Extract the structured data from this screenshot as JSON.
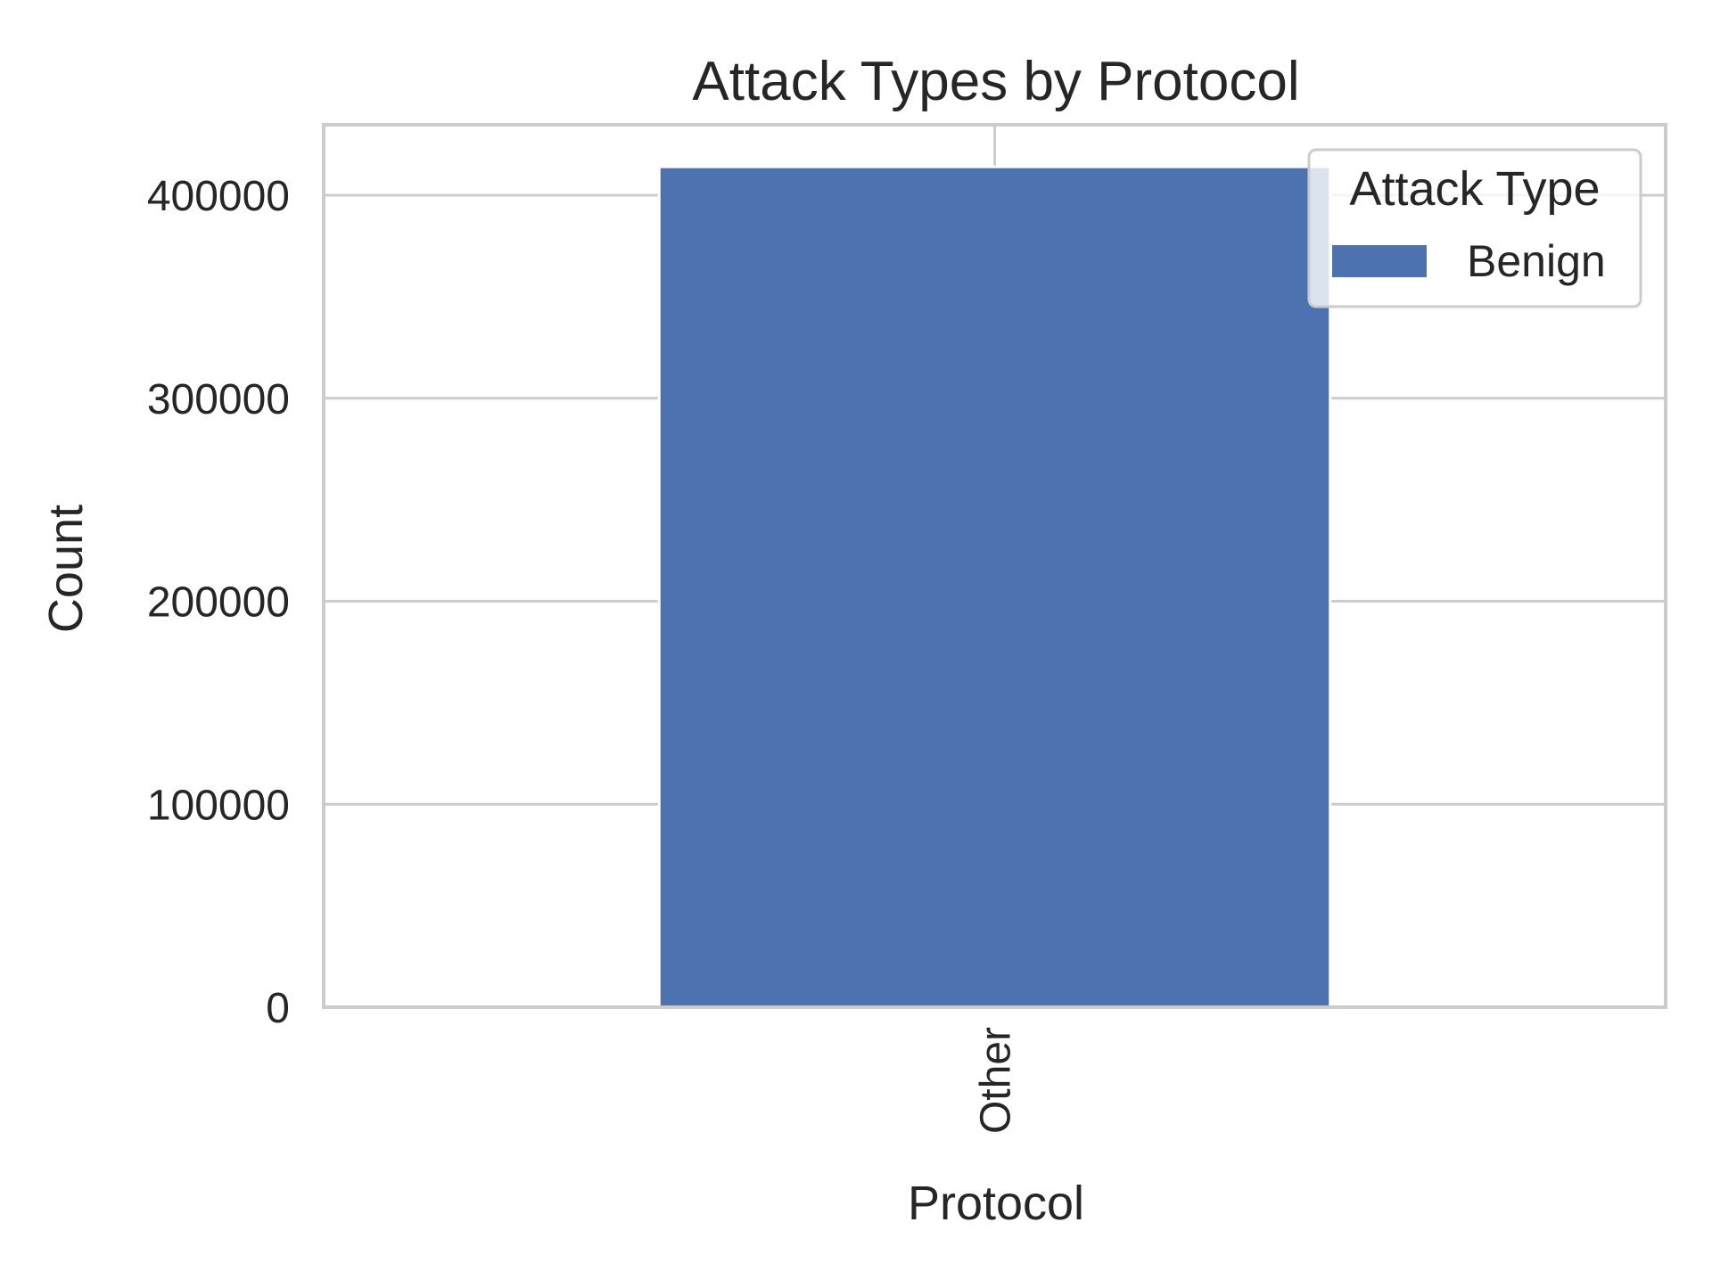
{
  "chart_data": {
    "type": "bar",
    "title": "Attack Types by Protocol",
    "xlabel": "Protocol",
    "ylabel": "Count",
    "categories": [
      "Other"
    ],
    "series": [
      {
        "name": "Benign",
        "values": [
          414000
        ],
        "color": "#4c72b0"
      }
    ],
    "ylim": [
      0,
      434700
    ],
    "yticks": [
      0,
      100000,
      200000,
      300000,
      400000
    ],
    "grid": true,
    "legend": {
      "title": "Attack Type",
      "placement": "top-right"
    },
    "colors": {
      "axis": "#cccccc",
      "grid": "#cccccc",
      "text": "#262626",
      "background": "#ffffff"
    }
  }
}
